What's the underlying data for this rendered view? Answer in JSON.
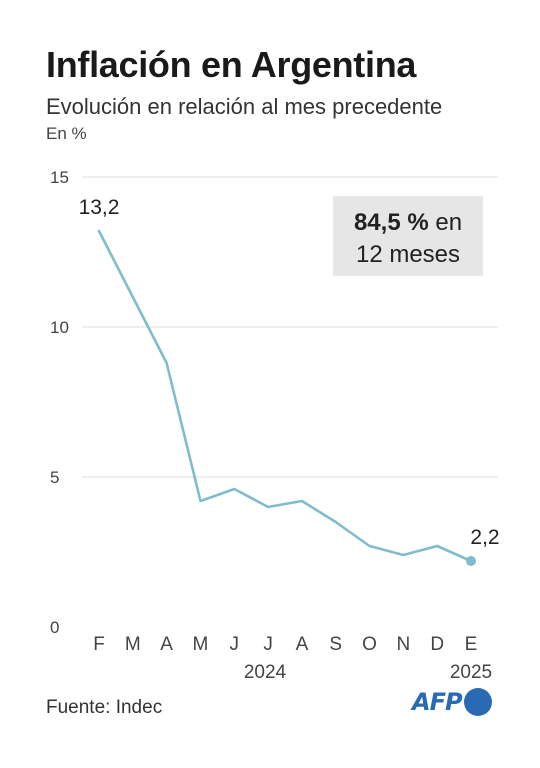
{
  "title": "Inflación en Argentina",
  "subtitle": "Evolución en relación al mes precedente",
  "unit": "En %",
  "source": "Fuente: Indec",
  "logo": "AFP",
  "colors": {
    "line": "#7fbccc",
    "grid": "#dddddd",
    "callout_bg": "#e6e6e6",
    "logo": "#2a6ab3"
  },
  "chart_data": {
    "type": "line",
    "categories": [
      "F",
      "M",
      "A",
      "M",
      "J",
      "J",
      "A",
      "S",
      "O",
      "N",
      "D",
      "E"
    ],
    "year_labels": [
      "2024",
      "2025"
    ],
    "series": [
      {
        "values": [
          13.2,
          11.0,
          8.8,
          4.2,
          4.6,
          4.0,
          4.2,
          3.5,
          2.7,
          2.4,
          2.7,
          2.2
        ]
      }
    ],
    "yticks": [
      0,
      5,
      10,
      15
    ],
    "ylim": [
      0,
      15
    ],
    "grid": true,
    "data_labels": [
      {
        "index": 0,
        "text": "13,2"
      },
      {
        "index": 11,
        "text": "2,2"
      }
    ],
    "callout": {
      "value": "84,5 %",
      "line1_rest": "en",
      "line2": "12 meses"
    },
    "xlabel": "",
    "ylabel": ""
  }
}
